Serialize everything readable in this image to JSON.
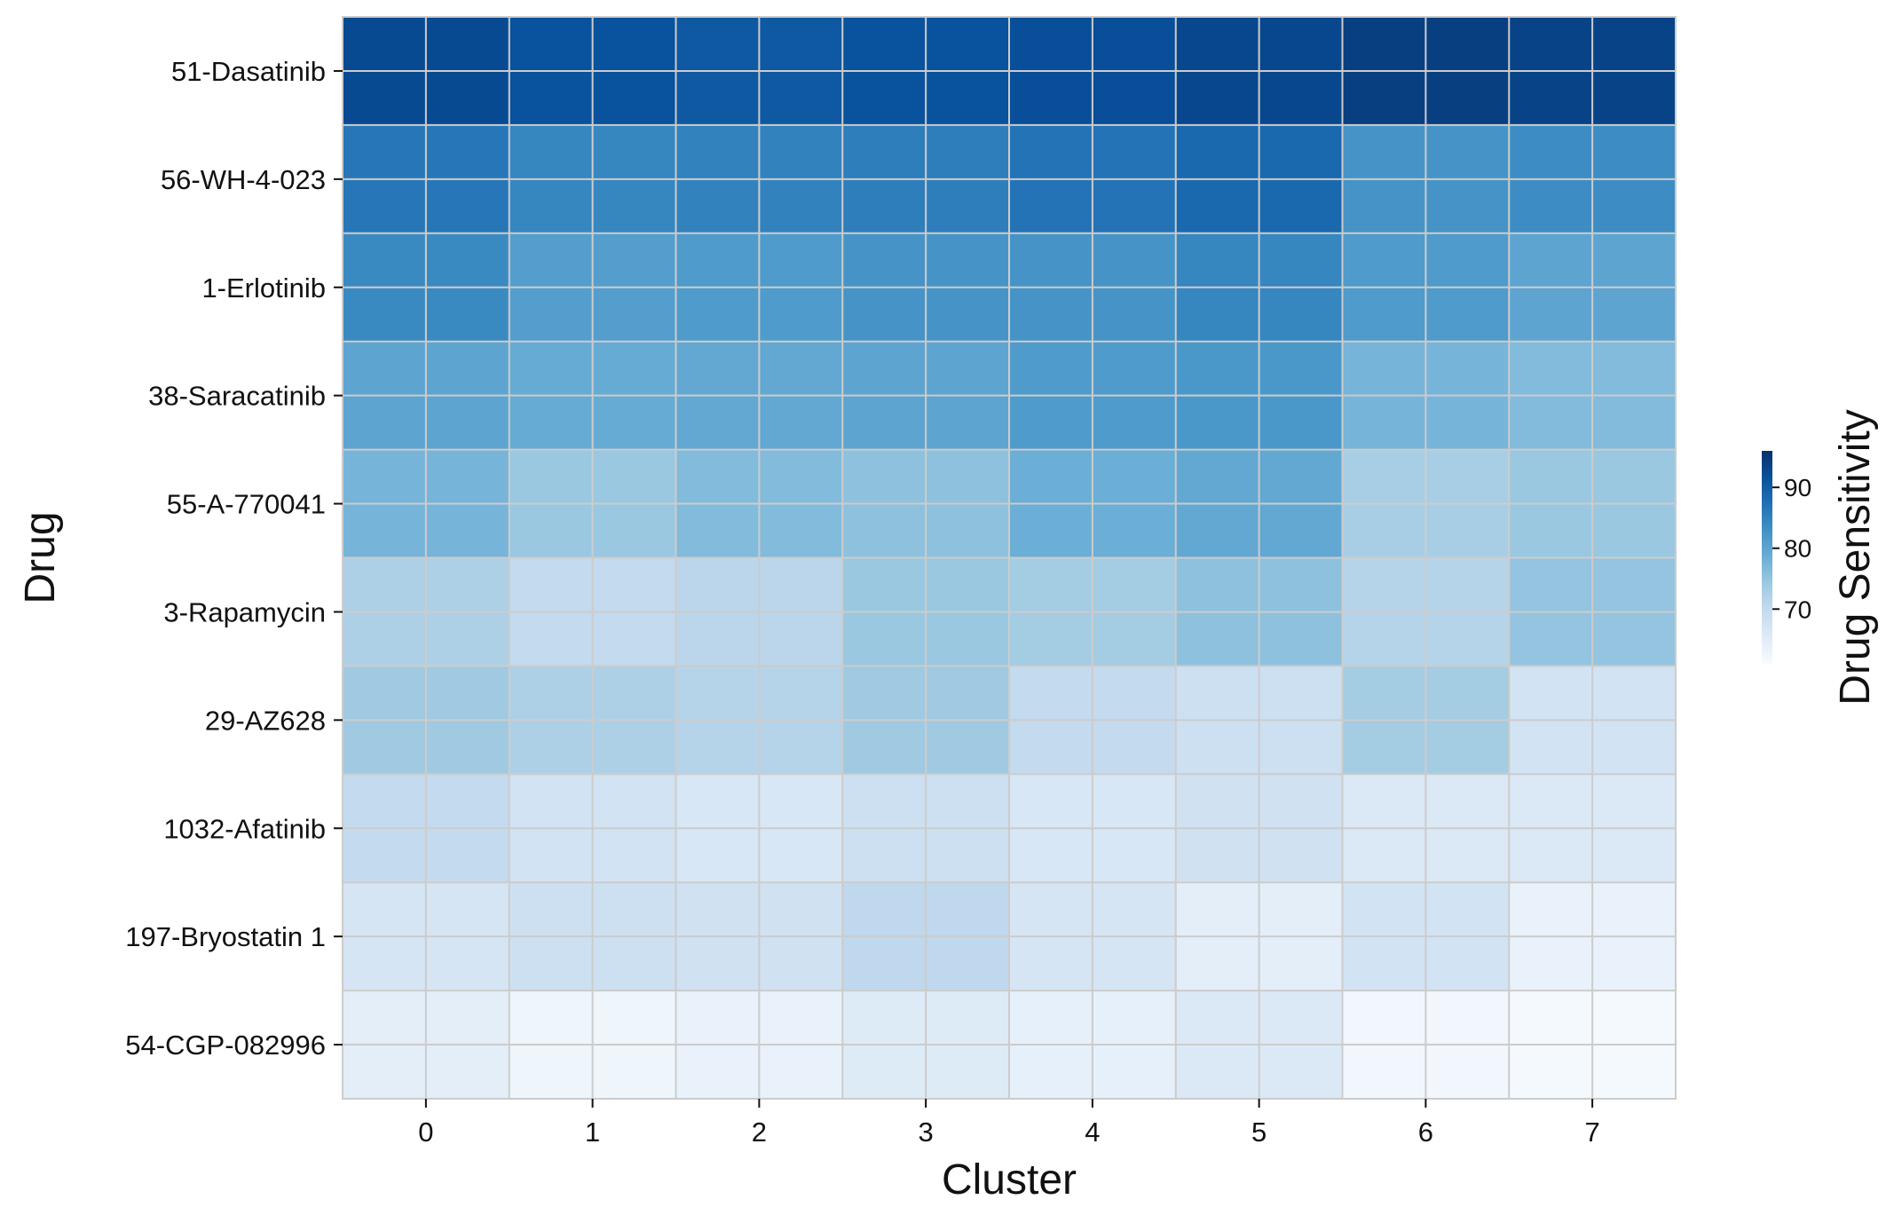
{
  "chart_data": {
    "type": "heatmap",
    "xlabel": "Cluster",
    "ylabel": "Drug",
    "x_categories": [
      "0",
      "1",
      "2",
      "3",
      "4",
      "5",
      "6",
      "7"
    ],
    "y_categories": [
      "51-Dasatinib",
      "56-WH-4-023",
      "1-Erlotinib",
      "38-Saracatinib",
      "55-A-770041",
      "3-Rapamycin",
      "29-AZ628",
      "1032-Afatinib",
      "197-Bryostatin 1",
      "54-CGP-082996"
    ],
    "values": [
      [
        92.5,
        91.5,
        90.5,
        91.5,
        92.0,
        93.0,
        94.0,
        93.5
      ],
      [
        86.5,
        84.5,
        85.0,
        85.5,
        87.0,
        88.5,
        82.5,
        83.5
      ],
      [
        84.0,
        81.0,
        81.5,
        82.5,
        82.5,
        84.5,
        81.5,
        80.0
      ],
      [
        80.0,
        79.0,
        79.5,
        80.0,
        81.5,
        82.0,
        77.5,
        76.5
      ],
      [
        77.5,
        74.5,
        76.5,
        75.5,
        78.5,
        79.5,
        73.0,
        74.5
      ],
      [
        72.5,
        70.0,
        71.0,
        74.5,
        73.5,
        75.5,
        71.5,
        75.0
      ],
      [
        74.0,
        72.5,
        71.5,
        74.0,
        70.0,
        68.5,
        73.5,
        67.5
      ],
      [
        70.0,
        67.5,
        66.5,
        68.5,
        66.5,
        68.0,
        66.0,
        66.0
      ],
      [
        67.0,
        68.5,
        68.0,
        70.5,
        67.0,
        64.5,
        67.5,
        63.5
      ],
      [
        64.5,
        62.5,
        63.5,
        65.5,
        64.0,
        66.0,
        62.0,
        61.5
      ]
    ],
    "colorbar": {
      "label": "Drug Sensitivity",
      "ticks": [
        70,
        80,
        90
      ],
      "range": [
        61,
        96
      ],
      "colormap": [
        "#f7fbff",
        "#deebf7",
        "#c6dbef",
        "#9ecae1",
        "#6baed6",
        "#4292c6",
        "#2171b5",
        "#08519c",
        "#08306b"
      ]
    },
    "cell_gridlines": true,
    "cell_border_color": "#cccccc"
  }
}
